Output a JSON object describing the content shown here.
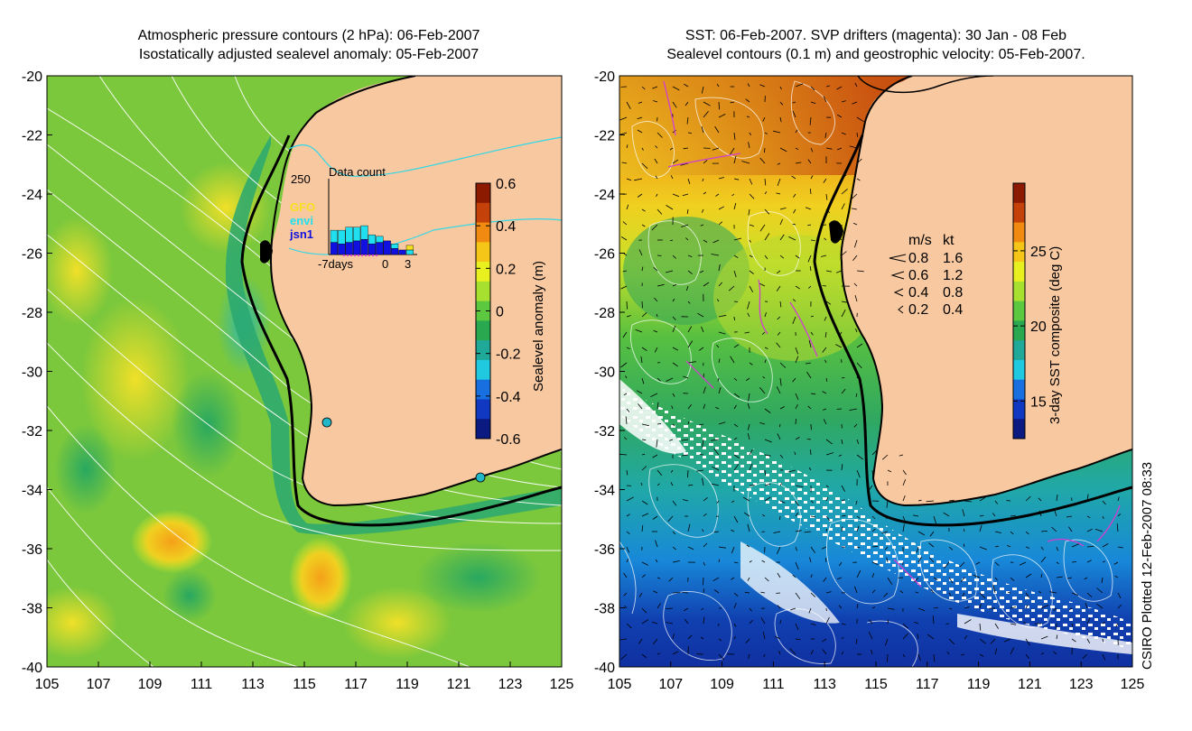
{
  "left_panel": {
    "title_line1": "Atmospheric pressure contours (2 hPa): 06-Feb-2007",
    "title_line2": "Isostatically adjusted sealevel anomaly: 05-Feb-2007",
    "colorbar": {
      "label": "Sealevel anomaly (m)",
      "ticks": [
        "0.6",
        "0.4",
        "0.2",
        "0",
        "-0.2",
        "-0.4",
        "-0.6"
      ],
      "colors": [
        "#8b1a00",
        "#c4420a",
        "#f08a10",
        "#f5c518",
        "#e8f020",
        "#a8e030",
        "#5cc840",
        "#2aa850",
        "#20a898",
        "#20c8e0",
        "#1870e0",
        "#1038c0",
        "#0a1a80"
      ]
    },
    "inset": {
      "title": "Data count",
      "y_max_label": "250",
      "x_labels": [
        "-7days",
        "0",
        "3"
      ],
      "legend": [
        {
          "name": "GFO",
          "color": "#f8e020"
        },
        {
          "name": "envi",
          "color": "#20e0f0"
        },
        {
          "name": "jsn1",
          "color": "#1010e0"
        }
      ]
    },
    "stations": [
      {
        "lon": 115.9,
        "lat": -31.8
      },
      {
        "lon": 121.9,
        "lat": -33.7
      }
    ]
  },
  "right_panel": {
    "title_line1": "SST: 06-Feb-2007. SVP drifters (magenta): 30 Jan - 08 Feb",
    "title_line2": "Sealevel contours (0.1 m) and geostrophic velocity: 05-Feb-2007.",
    "colorbar": {
      "label": "3-day SST composite (deg C)",
      "ticks": [
        "25",
        "20",
        "15"
      ],
      "colors": [
        "#8b1a00",
        "#c4420a",
        "#f08a10",
        "#f5c518",
        "#e8f020",
        "#a8e030",
        "#5cc840",
        "#2aa850",
        "#20a898",
        "#20c8e0",
        "#1870e0",
        "#1038c0",
        "#0a1a80"
      ]
    },
    "velocity_legend": {
      "header_ms": "m/s",
      "header_kt": "kt",
      "rows": [
        {
          "ms": "0.8",
          "kt": "1.6"
        },
        {
          "ms": "0.6",
          "kt": "1.2"
        },
        {
          "ms": "0.4",
          "kt": "0.8"
        },
        {
          "ms": "0.2",
          "kt": "0.4"
        }
      ]
    }
  },
  "axes": {
    "lon_ticks": [
      "105",
      "107",
      "109",
      "111",
      "113",
      "115",
      "117",
      "119",
      "121",
      "123",
      "125"
    ],
    "lat_ticks": [
      "-20",
      "-22",
      "-24",
      "-26",
      "-28",
      "-30",
      "-32",
      "-34",
      "-36",
      "-38",
      "-40"
    ],
    "lon_range": [
      105,
      125
    ],
    "lat_range": [
      -40,
      -20
    ]
  },
  "credit": "CSIRO Plotted 12-Feb-2007 08:33",
  "colors": {
    "land": "#f8c8a0",
    "coast": "#000000",
    "pressure_contour": "#ffffff",
    "cyan_contour": "#30d8e8",
    "drifter": "#d040d0"
  }
}
